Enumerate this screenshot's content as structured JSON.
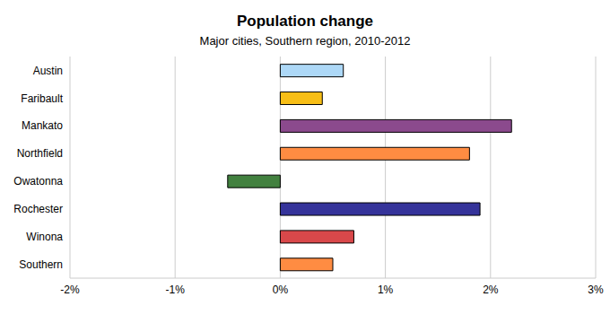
{
  "chart_data": {
    "type": "bar",
    "orientation": "horizontal",
    "title": "Population change",
    "subtitle": "Major cities, Southern region, 2010-2012",
    "categories": [
      "Austin",
      "Faribault",
      "Mankato",
      "Northfield",
      "Owatonna",
      "Rochester",
      "Winona",
      "Southern"
    ],
    "values": [
      0.6,
      0.4,
      2.2,
      1.8,
      -0.5,
      1.9,
      0.7,
      0.5
    ],
    "colors": [
      "#add8f7",
      "#f7be16",
      "#8b4a8d",
      "#ff8c42",
      "#42813f",
      "#35339a",
      "#d9484a",
      "#ff8c42"
    ],
    "xlim": [
      -2,
      3
    ],
    "xticks": [
      {
        "value": -2,
        "label": "-2%"
      },
      {
        "value": -1,
        "label": "-1%"
      },
      {
        "value": 0,
        "label": "0%"
      },
      {
        "value": 1,
        "label": "1%"
      },
      {
        "value": 2,
        "label": "2%"
      },
      {
        "value": 3,
        "label": "3%"
      }
    ],
    "grid": true
  }
}
